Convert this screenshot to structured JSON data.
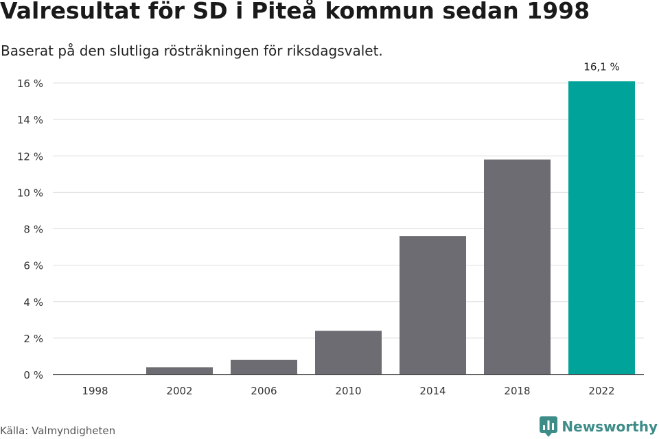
{
  "title": "Valresultat för SD i Piteå kommun sedan 1998",
  "subtitle": "Baserat på den slutliga rösträkningen för riksdagsvalet.",
  "source": "Källa: Valmyndigheten",
  "brand": "Newsworthy",
  "colors": {
    "bar": "#6d6c72",
    "highlight": "#00a39a",
    "grid": "#dddddd",
    "axis": "#333333",
    "brand": "#3d8c88"
  },
  "chart_data": {
    "type": "bar",
    "categories": [
      "1998",
      "2002",
      "2006",
      "2010",
      "2014",
      "2018",
      "2022"
    ],
    "values": [
      0.0,
      0.4,
      0.8,
      2.4,
      7.6,
      11.8,
      16.1
    ],
    "highlight_index": 6,
    "value_label": "16,1 %",
    "yticks": [
      "0 %",
      "2 %",
      "4 %",
      "6 %",
      "8 %",
      "10 %",
      "12 %",
      "14 %",
      "16 %"
    ],
    "ylim": [
      0,
      16
    ],
    "grid": true
  }
}
